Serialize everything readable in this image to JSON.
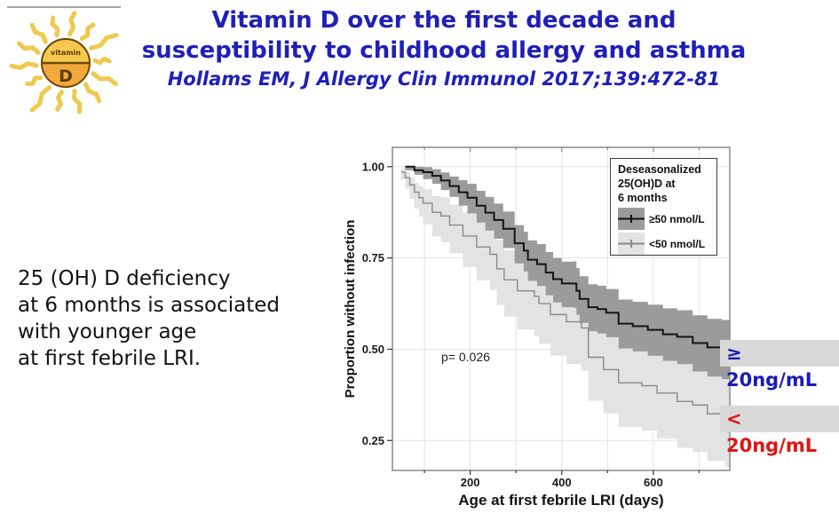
{
  "header": {
    "title_line1": "Vitamin D over the first decade and",
    "title_line2": "susceptibility to childhood allergy and asthma",
    "citation": "Hollams EM, J Allergy Clin Immunol 2017;139:472-81",
    "title_color": "#1f1fb8"
  },
  "logo": {
    "pill_top_label": "vitamin",
    "pill_letter": "D",
    "ray_color": "#eec94e",
    "pill_color": "#f2a93b"
  },
  "note": {
    "lines": [
      "25 (OH) D deficiency",
      "at 6 months is associated",
      "with younger age",
      "at first febrile LRI."
    ]
  },
  "legend": {
    "title_lines": [
      "Deseasonalized",
      "25(OH)D at",
      "6 months"
    ],
    "entries": [
      {
        "label": "≥50 nmol/L",
        "band_color": "#9b9b9b",
        "line_color": "#111111"
      },
      {
        "label": "<50 nmol/L",
        "band_color": "#e3e3e3",
        "line_color": "#8a8a8a"
      }
    ]
  },
  "annotations": {
    "right_labels": [
      {
        "text": "≥ 20ng/mL",
        "color": "#1a1ab8"
      },
      {
        "text": "< 20ng/mL",
        "color": "#e01414"
      }
    ]
  },
  "chart_data": {
    "type": "line",
    "subtype": "kaplan-meier-step-with-confidence-bands",
    "title": "",
    "xlabel": "Age at first febrile LRI (days)",
    "ylabel": "Proportion without infection",
    "p_value_text": "p= 0.026",
    "xlim": [
      30,
      767
    ],
    "ylim": [
      0.168,
      1.053
    ],
    "xticks": [
      200,
      400,
      600
    ],
    "xgrid": [
      100,
      200,
      300,
      400,
      500,
      600,
      700
    ],
    "yticks": [
      0.25,
      0.5,
      0.75,
      1.0
    ],
    "ytick_labels": [
      "0.25",
      "0.50",
      "0.75",
      "1.00"
    ],
    "grid": true,
    "grid_color": "#e4e4e4",
    "border_color": "#8a8a8a",
    "legend_position": "top-right",
    "series": [
      {
        "name": "<50 nmol/L",
        "line_color": "#8a8a8a",
        "band_color": "#e3e3e3",
        "line_width": 1.4,
        "x": [
          49,
          58,
          68,
          78,
          88,
          97,
          117,
          136,
          155,
          184,
          214,
          243,
          258,
          274,
          303,
          340,
          350,
          375,
          410,
          443,
          458,
          491,
          524,
          575,
          608,
          652,
          686,
          718,
          757
        ],
        "y": [
          0.985,
          0.97,
          0.95,
          0.93,
          0.915,
          0.9,
          0.875,
          0.865,
          0.84,
          0.81,
          0.78,
          0.76,
          0.72,
          0.69,
          0.66,
          0.645,
          0.625,
          0.595,
          0.575,
          0.558,
          0.478,
          0.444,
          0.408,
          0.4,
          0.38,
          0.357,
          0.347,
          0.323,
          0.308
        ],
        "upper": [
          0.995,
          0.985,
          0.97,
          0.956,
          0.947,
          0.938,
          0.92,
          0.916,
          0.896,
          0.875,
          0.852,
          0.837,
          0.799,
          0.771,
          0.745,
          0.734,
          0.715,
          0.687,
          0.671,
          0.656,
          0.577,
          0.544,
          0.509,
          0.503,
          0.485,
          0.465,
          0.457,
          0.435,
          0.423
        ],
        "lower": [
          0.965,
          0.94,
          0.912,
          0.885,
          0.863,
          0.842,
          0.809,
          0.793,
          0.763,
          0.725,
          0.688,
          0.663,
          0.621,
          0.589,
          0.554,
          0.536,
          0.515,
          0.483,
          0.459,
          0.44,
          0.359,
          0.324,
          0.287,
          0.277,
          0.255,
          0.23,
          0.219,
          0.194,
          0.178
        ]
      },
      {
        "name": "≥50 nmol/L",
        "line_color": "#141414",
        "band_color": "#9b9b9b",
        "line_width": 2,
        "x": [
          58,
          78,
          97,
          117,
          136,
          155,
          175,
          194,
          214,
          233,
          252,
          272,
          297,
          317,
          326,
          346,
          365,
          381,
          400,
          427,
          432,
          439,
          458,
          478,
          497,
          524,
          555,
          588,
          621,
          652,
          686,
          718,
          750,
          767
        ],
        "y": [
          1.0,
          0.99,
          0.985,
          0.975,
          0.962,
          0.947,
          0.93,
          0.915,
          0.893,
          0.874,
          0.854,
          0.83,
          0.79,
          0.77,
          0.745,
          0.733,
          0.71,
          0.692,
          0.68,
          0.68,
          0.66,
          0.638,
          0.615,
          0.61,
          0.6,
          0.57,
          0.563,
          0.553,
          0.541,
          0.534,
          0.517,
          0.505,
          0.5,
          0.5
        ],
        "upper": [
          1.0,
          1.0,
          0.999,
          0.993,
          0.984,
          0.973,
          0.963,
          0.953,
          0.934,
          0.917,
          0.899,
          0.877,
          0.84,
          0.822,
          0.798,
          0.788,
          0.766,
          0.75,
          0.74,
          0.741,
          0.722,
          0.7,
          0.678,
          0.674,
          0.665,
          0.636,
          0.63,
          0.622,
          0.612,
          0.607,
          0.593,
          0.583,
          0.58,
          0.58
        ],
        "lower": [
          0.99,
          0.978,
          0.966,
          0.953,
          0.936,
          0.917,
          0.893,
          0.872,
          0.847,
          0.825,
          0.803,
          0.777,
          0.735,
          0.713,
          0.687,
          0.673,
          0.648,
          0.628,
          0.615,
          0.613,
          0.594,
          0.572,
          0.549,
          0.543,
          0.533,
          0.502,
          0.494,
          0.482,
          0.468,
          0.459,
          0.439,
          0.425,
          0.418,
          0.415
        ]
      }
    ]
  }
}
